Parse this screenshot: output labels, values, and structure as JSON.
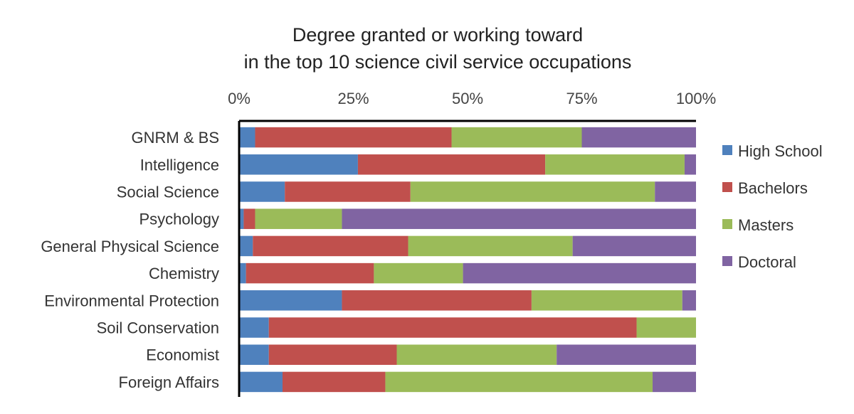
{
  "chart_data": {
    "type": "bar",
    "orientation": "horizontal",
    "stacked": "percent",
    "title_lines": [
      "Degree granted or working toward",
      "in the top 10 science civil service occupations"
    ],
    "xlabel": "",
    "ylabel": "",
    "xlim": [
      0,
      100
    ],
    "x_axis_position": "top",
    "x_ticks": [
      0,
      25,
      50,
      75,
      100
    ],
    "x_tick_labels": [
      "0%",
      "25%",
      "50%",
      "75%",
      "100%"
    ],
    "grid": false,
    "legend_position": "right",
    "categories": [
      "GNRM & BS",
      "Intelligence",
      "Social Science",
      "Psychology",
      "General Physical Science",
      "Chemistry",
      "Environmental Protection",
      "Soil Conservation",
      "Economist",
      "Foreign Affairs"
    ],
    "series": [
      {
        "name": "High School",
        "color": "#4f81bd",
        "values": [
          3.5,
          26,
          10,
          1,
          3,
          1.5,
          22.5,
          6.5,
          6.5,
          9.5
        ]
      },
      {
        "name": "Bachelors",
        "color": "#c0504d",
        "values": [
          43,
          41,
          27.5,
          2.5,
          34,
          28,
          41.5,
          80.5,
          28,
          22.5
        ]
      },
      {
        "name": "Masters",
        "color": "#9bbb59",
        "values": [
          28.5,
          30.5,
          53.5,
          19,
          36,
          19.5,
          33,
          13,
          35,
          58.5
        ]
      },
      {
        "name": "Doctoral",
        "color": "#8064a2",
        "values": [
          25,
          2.5,
          9,
          77.5,
          27,
          51,
          3,
          0,
          30.5,
          9.5
        ]
      }
    ]
  }
}
